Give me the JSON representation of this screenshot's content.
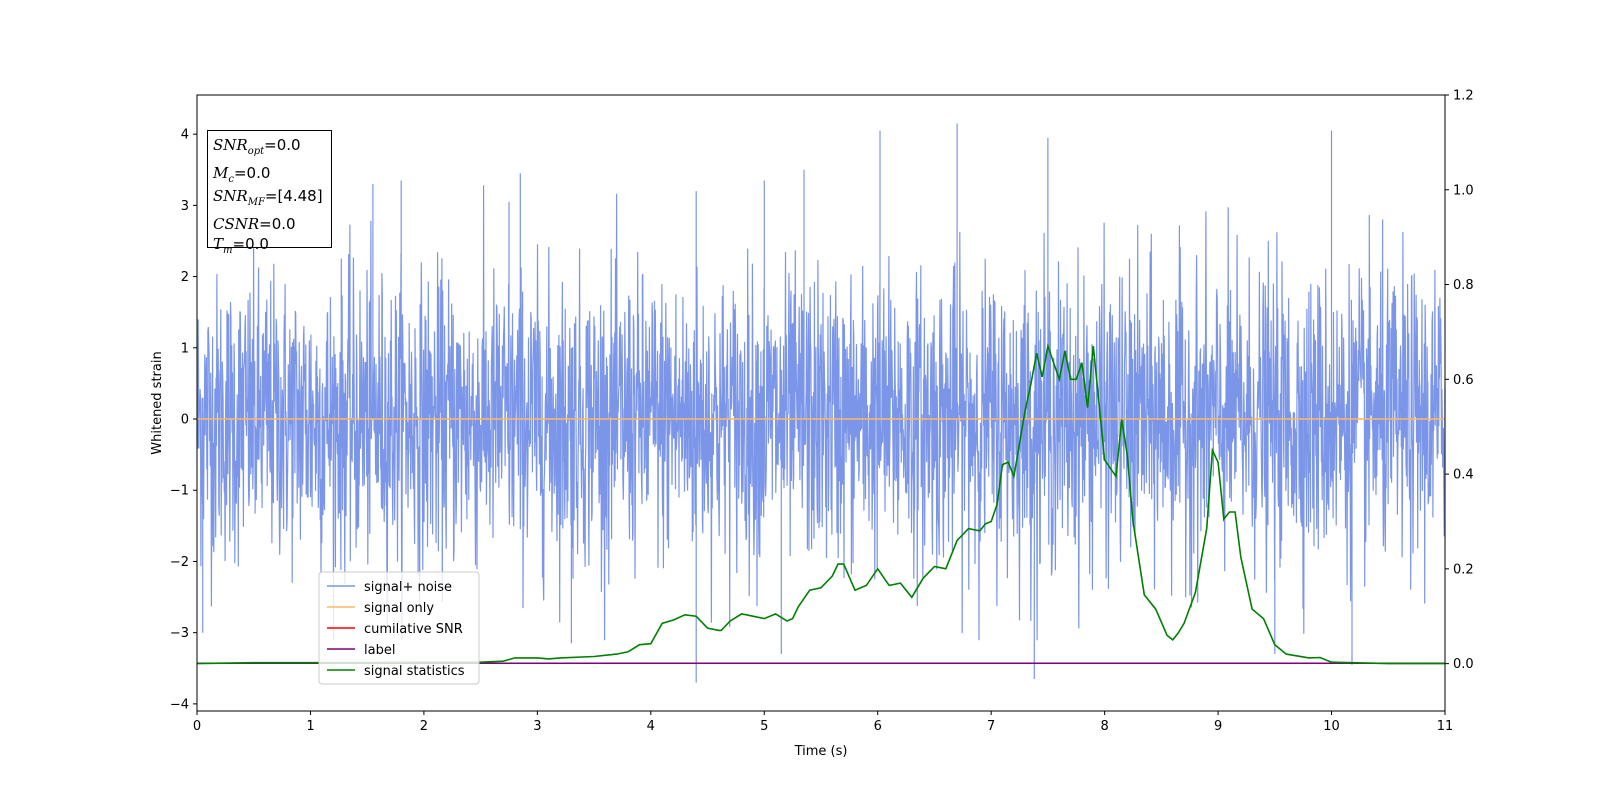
{
  "chart_data": {
    "type": "line",
    "xlabel": "Time (s)",
    "ylabel": "Whitened strain",
    "xlim": [
      0,
      11
    ],
    "ylim": [
      -4.1,
      4.55
    ],
    "y2lim": [
      -0.1,
      1.2
    ],
    "xticks": [
      0,
      1,
      2,
      3,
      4,
      5,
      6,
      7,
      8,
      9,
      10,
      11
    ],
    "yticks": [
      -4,
      -3,
      -2,
      -1,
      0,
      1,
      2,
      3,
      4
    ],
    "y2ticks": [
      0.0,
      0.2,
      0.4,
      0.6,
      0.8,
      1.0,
      1.2
    ],
    "xtick_labels": [
      "0",
      "1",
      "2",
      "3",
      "4",
      "5",
      "6",
      "7",
      "8",
      "9",
      "10",
      "11"
    ],
    "ytick_labels": [
      "−4",
      "−3",
      "−2",
      "−1",
      "0",
      "1",
      "2",
      "3",
      "4"
    ],
    "y2tick_labels": [
      "0.0",
      "0.2",
      "0.4",
      "0.6",
      "0.8",
      "1.0",
      "1.2"
    ],
    "legend_position": "lower-left",
    "grid": false,
    "series": [
      {
        "name": "signal+ noise",
        "axis": "left",
        "color": "#7b96e8",
        "description_range": [
          -3.7,
          4.2
        ],
        "noise_sigma": 1.0,
        "noise_spikes": [
          {
            "x": 0.05,
            "y": -3.0
          },
          {
            "x": 1.55,
            "y": 3.3
          },
          {
            "x": 1.8,
            "y": 3.35
          },
          {
            "x": 2.75,
            "y": 3.05
          },
          {
            "x": 2.85,
            "y": 3.45
          },
          {
            "x": 3.3,
            "y": -3.15
          },
          {
            "x": 4.4,
            "y": -3.7
          },
          {
            "x": 4.4,
            "y": 3.2
          },
          {
            "x": 5.0,
            "y": 3.35
          },
          {
            "x": 5.35,
            "y": 3.5
          },
          {
            "x": 5.15,
            "y": -3.3
          },
          {
            "x": 6.02,
            "y": 4.05
          },
          {
            "x": 6.7,
            "y": 4.15
          },
          {
            "x": 7.38,
            "y": -3.65
          },
          {
            "x": 7.5,
            "y": 3.95
          },
          {
            "x": 9.5,
            "y": -3.3
          },
          {
            "x": 10.0,
            "y": 4.05
          },
          {
            "x": 10.18,
            "y": -3.45
          }
        ]
      },
      {
        "name": "signal only",
        "axis": "left",
        "color": "#ffb763",
        "x": [
          0,
          11
        ],
        "y": [
          0,
          0
        ]
      },
      {
        "name": "cumilative SNR",
        "axis": "left",
        "color": "#ff0000",
        "x": [],
        "y": []
      },
      {
        "name": "label",
        "axis": "left",
        "color": "#800080",
        "x": [
          0,
          11
        ],
        "y": [
          -3.43,
          -3.43
        ]
      },
      {
        "name": "signal statistics",
        "axis": "right",
        "color": "#008000",
        "x": [
          0,
          0.5,
          1.0,
          1.5,
          2.0,
          2.5,
          2.7,
          2.8,
          3.0,
          3.1,
          3.2,
          3.5,
          3.7,
          3.8,
          3.9,
          4.0,
          4.1,
          4.2,
          4.3,
          4.4,
          4.5,
          4.6,
          4.62,
          4.7,
          4.8,
          4.9,
          5.0,
          5.1,
          5.2,
          5.25,
          5.3,
          5.4,
          5.5,
          5.6,
          5.65,
          5.7,
          5.8,
          5.9,
          6.0,
          6.1,
          6.2,
          6.3,
          6.4,
          6.5,
          6.6,
          6.7,
          6.8,
          6.9,
          6.95,
          7.0,
          7.05,
          7.1,
          7.15,
          7.2,
          7.3,
          7.35,
          7.4,
          7.45,
          7.5,
          7.6,
          7.65,
          7.7,
          7.75,
          7.8,
          7.85,
          7.9,
          7.95,
          8.0,
          8.1,
          8.15,
          8.2,
          8.25,
          8.35,
          8.45,
          8.55,
          8.6,
          8.65,
          8.7,
          8.8,
          8.9,
          8.95,
          9.0,
          9.05,
          9.1,
          9.15,
          9.2,
          9.3,
          9.4,
          9.5,
          9.6,
          9.8,
          9.9,
          10.0,
          10.5,
          11.0
        ],
        "y": [
          0.0,
          0.002,
          0.002,
          0.002,
          0.003,
          0.003,
          0.005,
          0.012,
          0.012,
          0.01,
          0.012,
          0.015,
          0.02,
          0.025,
          0.04,
          0.042,
          0.085,
          0.092,
          0.103,
          0.1,
          0.075,
          0.07,
          0.07,
          0.09,
          0.105,
          0.1,
          0.095,
          0.105,
          0.09,
          0.095,
          0.12,
          0.155,
          0.16,
          0.185,
          0.21,
          0.21,
          0.155,
          0.165,
          0.2,
          0.165,
          0.17,
          0.14,
          0.18,
          0.205,
          0.2,
          0.26,
          0.285,
          0.28,
          0.295,
          0.3,
          0.335,
          0.42,
          0.425,
          0.395,
          0.535,
          0.59,
          0.655,
          0.605,
          0.67,
          0.6,
          0.66,
          0.6,
          0.6,
          0.635,
          0.54,
          0.67,
          0.55,
          0.43,
          0.395,
          0.515,
          0.44,
          0.3,
          0.145,
          0.115,
          0.06,
          0.05,
          0.065,
          0.085,
          0.15,
          0.285,
          0.45,
          0.425,
          0.305,
          0.32,
          0.32,
          0.225,
          0.115,
          0.095,
          0.04,
          0.02,
          0.012,
          0.013,
          0.003,
          0.0,
          0.0
        ]
      }
    ]
  },
  "info_box": {
    "snr_opt_label": "SNR",
    "snr_opt_sub": "opt",
    "snr_opt_value": "=0.0",
    "mc_label": "M",
    "mc_sub": "c",
    "mc_value": "=0.0",
    "snr_mf_label": "SNR",
    "snr_mf_sub": "MF",
    "snr_mf_value": "=[4.48]",
    "csnr_label": "CSNR",
    "csnr_value": "=0.0",
    "tm_label": "T",
    "tm_sub": "m",
    "tm_value": "=0.0"
  }
}
